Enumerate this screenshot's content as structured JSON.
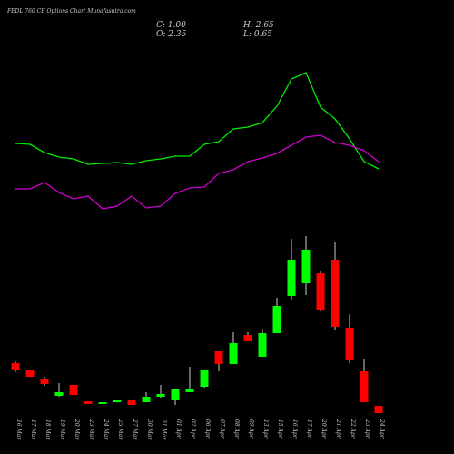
{
  "chart_data": {
    "type": "candlestick",
    "title": "FEDL 760  CE Options  Chart Munafasutra.com",
    "info": [
      "C: 1.00",
      "H: 2.65",
      "O: 2.35",
      "L: 0.65"
    ],
    "categories": [
      "16 Mar",
      "17 Mar",
      "18 Mar",
      "19 Mar",
      "20 Mar",
      "23 Mar",
      "24 Mar",
      "25 Mar",
      "27 Mar",
      "30 Mar",
      "31 Mar",
      "01 Apr",
      "02 Apr",
      "06 Apr",
      "07 Apr",
      "08 Apr",
      "09 Apr",
      "13 Apr",
      "15 Apr",
      "16 Apr",
      "17 Apr",
      "20 Apr",
      "21 Apr",
      "22 Apr",
      "23 Apr",
      "24 Apr"
    ],
    "open": [
      1.4,
      1.24,
      1.06,
      0.68,
      0.92,
      0.56,
      0.5,
      0.54,
      0.6,
      0.54,
      0.66,
      0.6,
      0.76,
      0.88,
      1.66,
      1.38,
      2.02,
      1.54,
      2.06,
      2.88,
      3.16,
      3.38,
      3.68,
      2.18,
      1.22,
      0.46
    ],
    "high": [
      1.44,
      1.24,
      1.1,
      0.96,
      0.92,
      0.56,
      0.54,
      0.58,
      0.6,
      0.76,
      0.92,
      0.84,
      1.32,
      1.26,
      1.66,
      2.08,
      2.08,
      2.16,
      2.84,
      4.14,
      4.2,
      3.44,
      4.08,
      2.48,
      1.5,
      0.46
    ],
    "low": [
      1.2,
      1.1,
      0.9,
      0.66,
      0.7,
      0.5,
      0.5,
      0.54,
      0.48,
      0.54,
      0.64,
      0.48,
      0.76,
      0.86,
      1.22,
      1.38,
      1.88,
      1.54,
      2.06,
      2.8,
      2.9,
      2.54,
      2.14,
      1.4,
      0.54,
      0.3
    ],
    "close": [
      1.24,
      1.1,
      0.94,
      0.76,
      0.7,
      0.5,
      0.54,
      0.58,
      0.48,
      0.66,
      0.72,
      0.84,
      0.84,
      1.26,
      1.38,
      1.84,
      1.88,
      2.06,
      2.66,
      3.68,
      3.9,
      2.58,
      2.2,
      1.46,
      0.54,
      0.3
    ],
    "up_color": "#00ff00",
    "down_color": "#ff0000",
    "ylim": [
      0,
      4.8
    ],
    "lines": [
      {
        "color": "#00ee00",
        "values": [
          1.84,
          1.82,
          1.64,
          1.54,
          1.5,
          1.38,
          1.4,
          1.42,
          1.38,
          1.46,
          1.5,
          1.56,
          1.56,
          1.82,
          1.88,
          2.16,
          2.2,
          2.3,
          2.66,
          3.26,
          3.4,
          2.64,
          2.38,
          1.94,
          1.44,
          1.28
        ]
      },
      {
        "color": "#cc00cc",
        "values": [
          0.84,
          0.84,
          0.98,
          0.76,
          0.62,
          0.68,
          0.4,
          0.46,
          0.68,
          0.42,
          0.46,
          0.74,
          0.86,
          0.88,
          1.18,
          1.26,
          1.44,
          1.52,
          1.62,
          1.8,
          1.98,
          2.02,
          1.86,
          1.8,
          1.68,
          1.44
        ]
      }
    ],
    "lines_ylim": [
      0,
      4
    ]
  }
}
